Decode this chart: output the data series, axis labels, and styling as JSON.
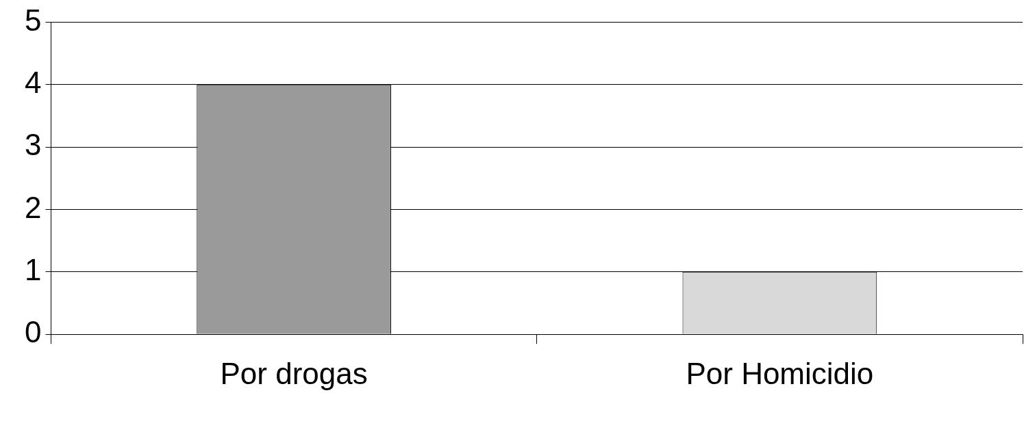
{
  "chart_data": {
    "type": "bar",
    "categories": [
      "Por drogas",
      "Por Homicidio"
    ],
    "values": [
      4,
      1
    ],
    "colors": [
      "#9a9a9a",
      "#d9d9d9"
    ],
    "ylim": [
      0,
      5
    ],
    "yticks": [
      0,
      1,
      2,
      3,
      4,
      5
    ],
    "grid": "y",
    "legend": false
  }
}
